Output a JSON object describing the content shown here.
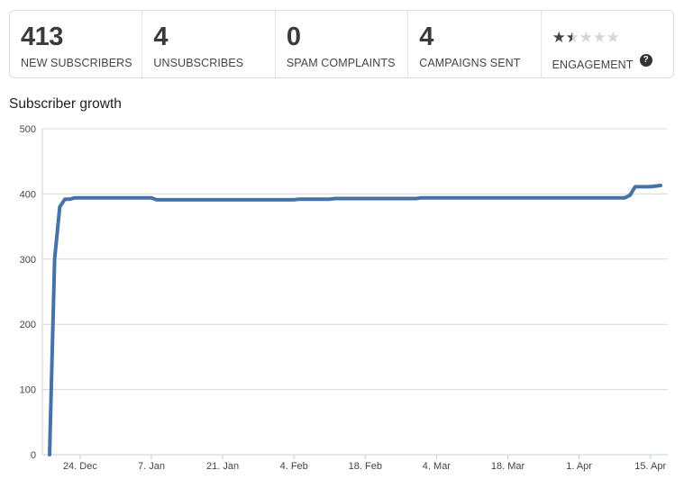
{
  "stats": [
    {
      "value": "413",
      "label": "NEW SUBSCRIBERS"
    },
    {
      "value": "4",
      "label": "UNSUBSCRIBES"
    },
    {
      "value": "0",
      "label": "SPAM COMPLAINTS"
    },
    {
      "value": "4",
      "label": "CAMPAIGNS SENT"
    }
  ],
  "engagement": {
    "label": "ENGAGEMENT",
    "rating": 1.5,
    "max": 5,
    "help_symbol": "?",
    "help_icon": "question-circle-icon"
  },
  "chart_title": "Subscriber growth",
  "chart_data": {
    "type": "line",
    "title": "Subscriber growth",
    "xlabel": "",
    "ylabel": "",
    "ylim": [
      0,
      500
    ],
    "yticks": [
      "0",
      "100",
      "200",
      "300",
      "400",
      "500"
    ],
    "xticks": [
      "24. Dec",
      "7. Jan",
      "21. Jan",
      "4. Feb",
      "18. Feb",
      "4. Mar",
      "18. Mar",
      "1. Apr",
      "15. Apr"
    ],
    "grid": true,
    "legend": "none",
    "series": [
      {
        "color": "#4572a7",
        "points": [
          {
            "x": "18. Dec",
            "y": 0
          },
          {
            "x": "19. Dec",
            "y": 300
          },
          {
            "x": "20. Dec",
            "y": 380
          },
          {
            "x": "21. Dec",
            "y": 392
          },
          {
            "x": "22. Dec",
            "y": 392
          },
          {
            "x": "23. Dec",
            "y": 394
          },
          {
            "x": "7. Jan",
            "y": 394
          },
          {
            "x": "8. Jan",
            "y": 391
          },
          {
            "x": "4. Feb",
            "y": 391
          },
          {
            "x": "5. Feb",
            "y": 392
          },
          {
            "x": "11. Feb",
            "y": 392
          },
          {
            "x": "12. Feb",
            "y": 393
          },
          {
            "x": "28. Feb",
            "y": 393
          },
          {
            "x": "1. Mar",
            "y": 394
          },
          {
            "x": "10. Apr",
            "y": 394
          },
          {
            "x": "11. Apr",
            "y": 398
          },
          {
            "x": "12. Apr",
            "y": 411
          },
          {
            "x": "15. Apr",
            "y": 411
          },
          {
            "x": "17. Apr",
            "y": 413
          }
        ]
      }
    ]
  }
}
